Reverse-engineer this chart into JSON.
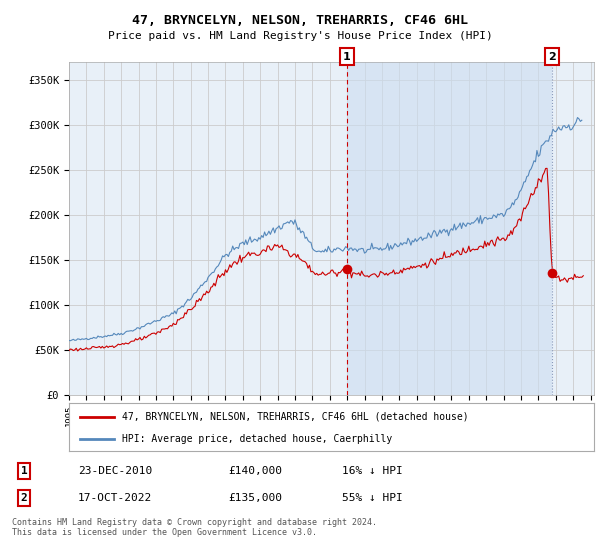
{
  "title": "47, BRYNCELYN, NELSON, TREHARRIS, CF46 6HL",
  "subtitle": "Price paid vs. HM Land Registry's House Price Index (HPI)",
  "ylim": [
    0,
    370000
  ],
  "xlim_start": 1995.0,
  "xlim_end": 2025.2,
  "yticks": [
    0,
    50000,
    100000,
    150000,
    200000,
    250000,
    300000,
    350000
  ],
  "ytick_labels": [
    "£0",
    "£50K",
    "£100K",
    "£150K",
    "£200K",
    "£250K",
    "£300K",
    "£350K"
  ],
  "background_color": "#ffffff",
  "plot_bg_color": "#e8f0f8",
  "grid_color": "#cccccc",
  "red_color": "#cc0000",
  "blue_color": "#5588bb",
  "shade_color": "#ccddf0",
  "transaction1_date": 2010.98,
  "transaction1_price": 140000,
  "transaction1_label": "1",
  "transaction2_date": 2022.79,
  "transaction2_price": 135000,
  "transaction2_label": "2",
  "legend_red_label": "47, BRYNCELYN, NELSON, TREHARRIS, CF46 6HL (detached house)",
  "legend_blue_label": "HPI: Average price, detached house, Caerphilly",
  "table_row1": [
    "1",
    "23-DEC-2010",
    "£140,000",
    "16% ↓ HPI"
  ],
  "table_row2": [
    "2",
    "17-OCT-2022",
    "£135,000",
    "55% ↓ HPI"
  ],
  "footnote": "Contains HM Land Registry data © Crown copyright and database right 2024.\nThis data is licensed under the Open Government Licence v3.0."
}
